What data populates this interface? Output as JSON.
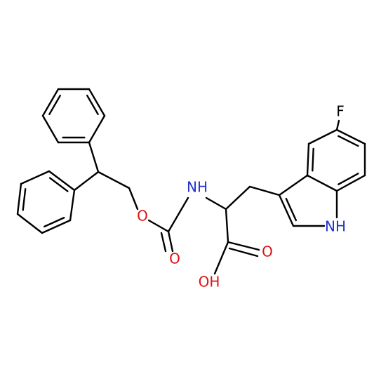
{
  "atoms": {
    "fluorine": "F",
    "amide_nitrogen": "NH",
    "ester_oxygen": "O",
    "carbonyl_oxygen": "O",
    "acid_oxygen": "O",
    "hydroxyl": "OH",
    "indole_nitrogen": "NH"
  }
}
